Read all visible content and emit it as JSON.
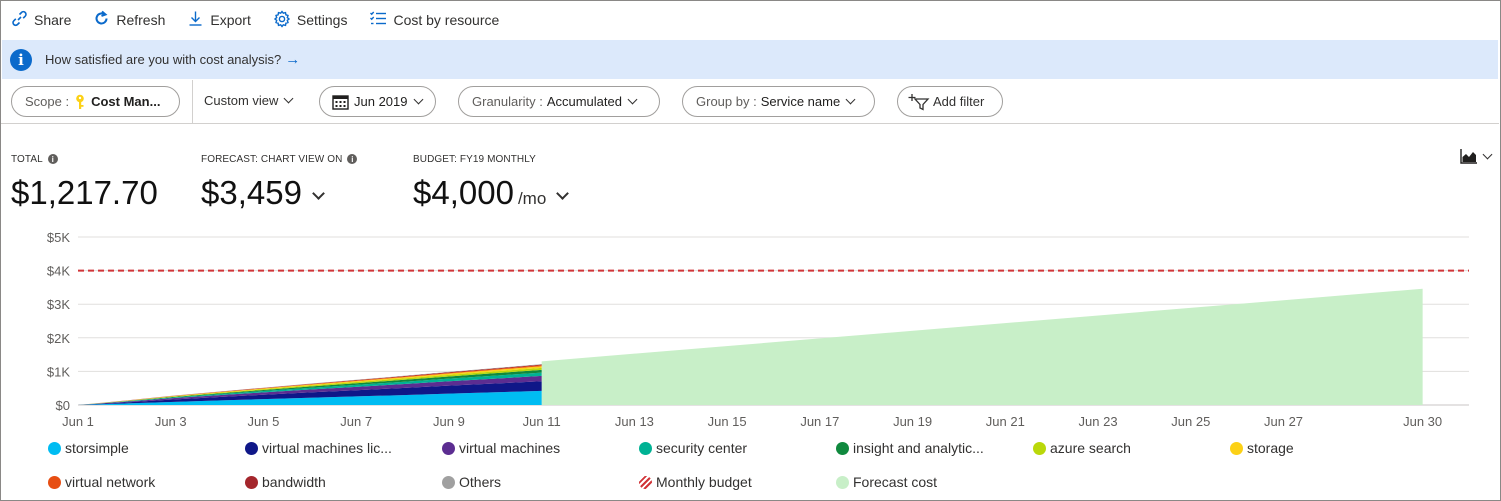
{
  "toolbar": {
    "share": "Share",
    "refresh": "Refresh",
    "export": "Export",
    "settings": "Settings",
    "cost_by_resource": "Cost by resource"
  },
  "banner": {
    "text": "How satisfied are you with cost analysis?"
  },
  "filters": {
    "scope_label": "Scope :",
    "scope_value": "Cost Man...",
    "view": "Custom view",
    "date": "Jun 2019",
    "granularity_label": "Granularity :",
    "granularity_value": "Accumulated",
    "groupby_label": "Group by :",
    "groupby_value": "Service name",
    "add_filter": "Add filter"
  },
  "kpis": {
    "total_label": "TOTAL",
    "total_value": "$1,217.70",
    "forecast_label": "FORECAST: CHART VIEW ON",
    "forecast_value": "$3,459",
    "budget_label": "BUDGET: FY19 MONTHLY",
    "budget_value": "$4,000",
    "budget_unit": "/mo"
  },
  "colors": {
    "accent": "#0b6acb",
    "budget_line": "#d13438",
    "forecast": "#c8efc8"
  },
  "chart_data": {
    "type": "area",
    "stacked": true,
    "x": [
      "Jun 1",
      "Jun 2",
      "Jun 3",
      "Jun 4",
      "Jun 5",
      "Jun 6",
      "Jun 7",
      "Jun 8",
      "Jun 9",
      "Jun 10",
      "Jun 11"
    ],
    "series": [
      {
        "name": "storsimple",
        "color": "#00bcf2",
        "values": [
          0,
          45,
          90,
          135,
          175,
          215,
          255,
          295,
          340,
          380,
          420
        ]
      },
      {
        "name": "virtual machines lic...",
        "color": "#0f1788",
        "values": [
          0,
          30,
          70,
          100,
          130,
          160,
          185,
          210,
          235,
          260,
          285
        ]
      },
      {
        "name": "virtual machines",
        "color": "#5c2d91",
        "values": [
          0,
          20,
          40,
          55,
          70,
          85,
          100,
          115,
          130,
          145,
          160
        ]
      },
      {
        "name": "security center",
        "color": "#00b294",
        "values": [
          0,
          10,
          20,
          30,
          40,
          50,
          60,
          70,
          80,
          90,
          100
        ]
      },
      {
        "name": "insight and analytic...",
        "color": "#10893e",
        "values": [
          0,
          8,
          16,
          24,
          32,
          40,
          48,
          56,
          64,
          72,
          80
        ]
      },
      {
        "name": "azure search",
        "color": "#bad80a",
        "values": [
          0,
          6,
          12,
          18,
          24,
          30,
          36,
          42,
          48,
          54,
          60
        ]
      },
      {
        "name": "storage",
        "color": "#fcd116",
        "values": [
          0,
          5,
          10,
          15,
          20,
          25,
          30,
          35,
          40,
          45,
          50
        ]
      },
      {
        "name": "virtual network",
        "color": "#e74e13",
        "values": [
          0,
          3,
          6,
          9,
          12,
          15,
          18,
          21,
          24,
          27,
          30
        ]
      },
      {
        "name": "bandwidth",
        "color": "#a4262c",
        "values": [
          0,
          2,
          4,
          6,
          8,
          10,
          12,
          14,
          16,
          18,
          20
        ]
      },
      {
        "name": "Others",
        "color": "#a0a0a0",
        "values": [
          0,
          1,
          2,
          3,
          4,
          5,
          6,
          7,
          8,
          9,
          12.7
        ]
      }
    ],
    "forecast": {
      "name": "Forecast cost",
      "x": [
        "Jun 11",
        "Jun 30"
      ],
      "values": [
        1300,
        3459
      ]
    },
    "budget": {
      "name": "Monthly budget",
      "value": 4000
    },
    "x_ticks": [
      "Jun 1",
      "Jun 3",
      "Jun 5",
      "Jun 7",
      "Jun 9",
      "Jun 11",
      "Jun 13",
      "Jun 15",
      "Jun 17",
      "Jun 19",
      "Jun 21",
      "Jun 23",
      "Jun 25",
      "Jun 27",
      "Jun 30"
    ],
    "y_ticks": [
      "$0",
      "$1K",
      "$2K",
      "$3K",
      "$4K",
      "$5K"
    ],
    "ylim": [
      0,
      5000
    ],
    "xlim_days": [
      0,
      30
    ],
    "grid": true,
    "legend_position": "bottom"
  }
}
